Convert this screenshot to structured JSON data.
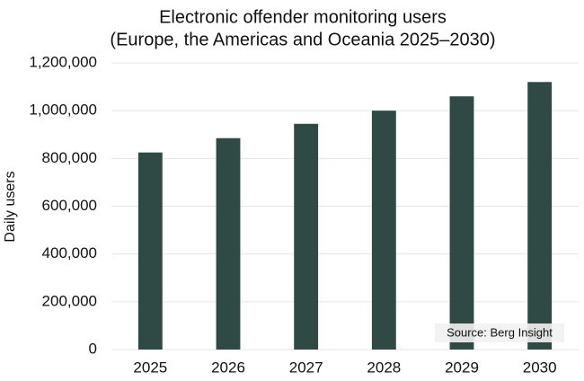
{
  "chart_data": {
    "type": "bar",
    "title": "Electronic offender monitoring users",
    "subtitle": "(Europe, the Americas and Oceania 2025–2030)",
    "y_label": "Daily users",
    "annotation": "Source: Berg Insight",
    "categories": [
      "2025",
      "2026",
      "2027",
      "2028",
      "2029",
      "2030"
    ],
    "values": [
      825000,
      885000,
      945000,
      1000000,
      1060000,
      1120000
    ],
    "color": "#2f4a44",
    "ylim": [
      0,
      1200000
    ],
    "yticks": [
      0,
      {
        "value": 200000,
        "label": "200,000"
      },
      {
        "value": 400000,
        "label": "400,000"
      },
      {
        "value": 600000,
        "label": "600,000"
      },
      {
        "value": 800000,
        "label": "800,000"
      },
      {
        "value": 1000000,
        "label": "1,000,000"
      },
      {
        "value": 1200000,
        "label": "1,200,000"
      }
    ],
    "grid": true
  }
}
